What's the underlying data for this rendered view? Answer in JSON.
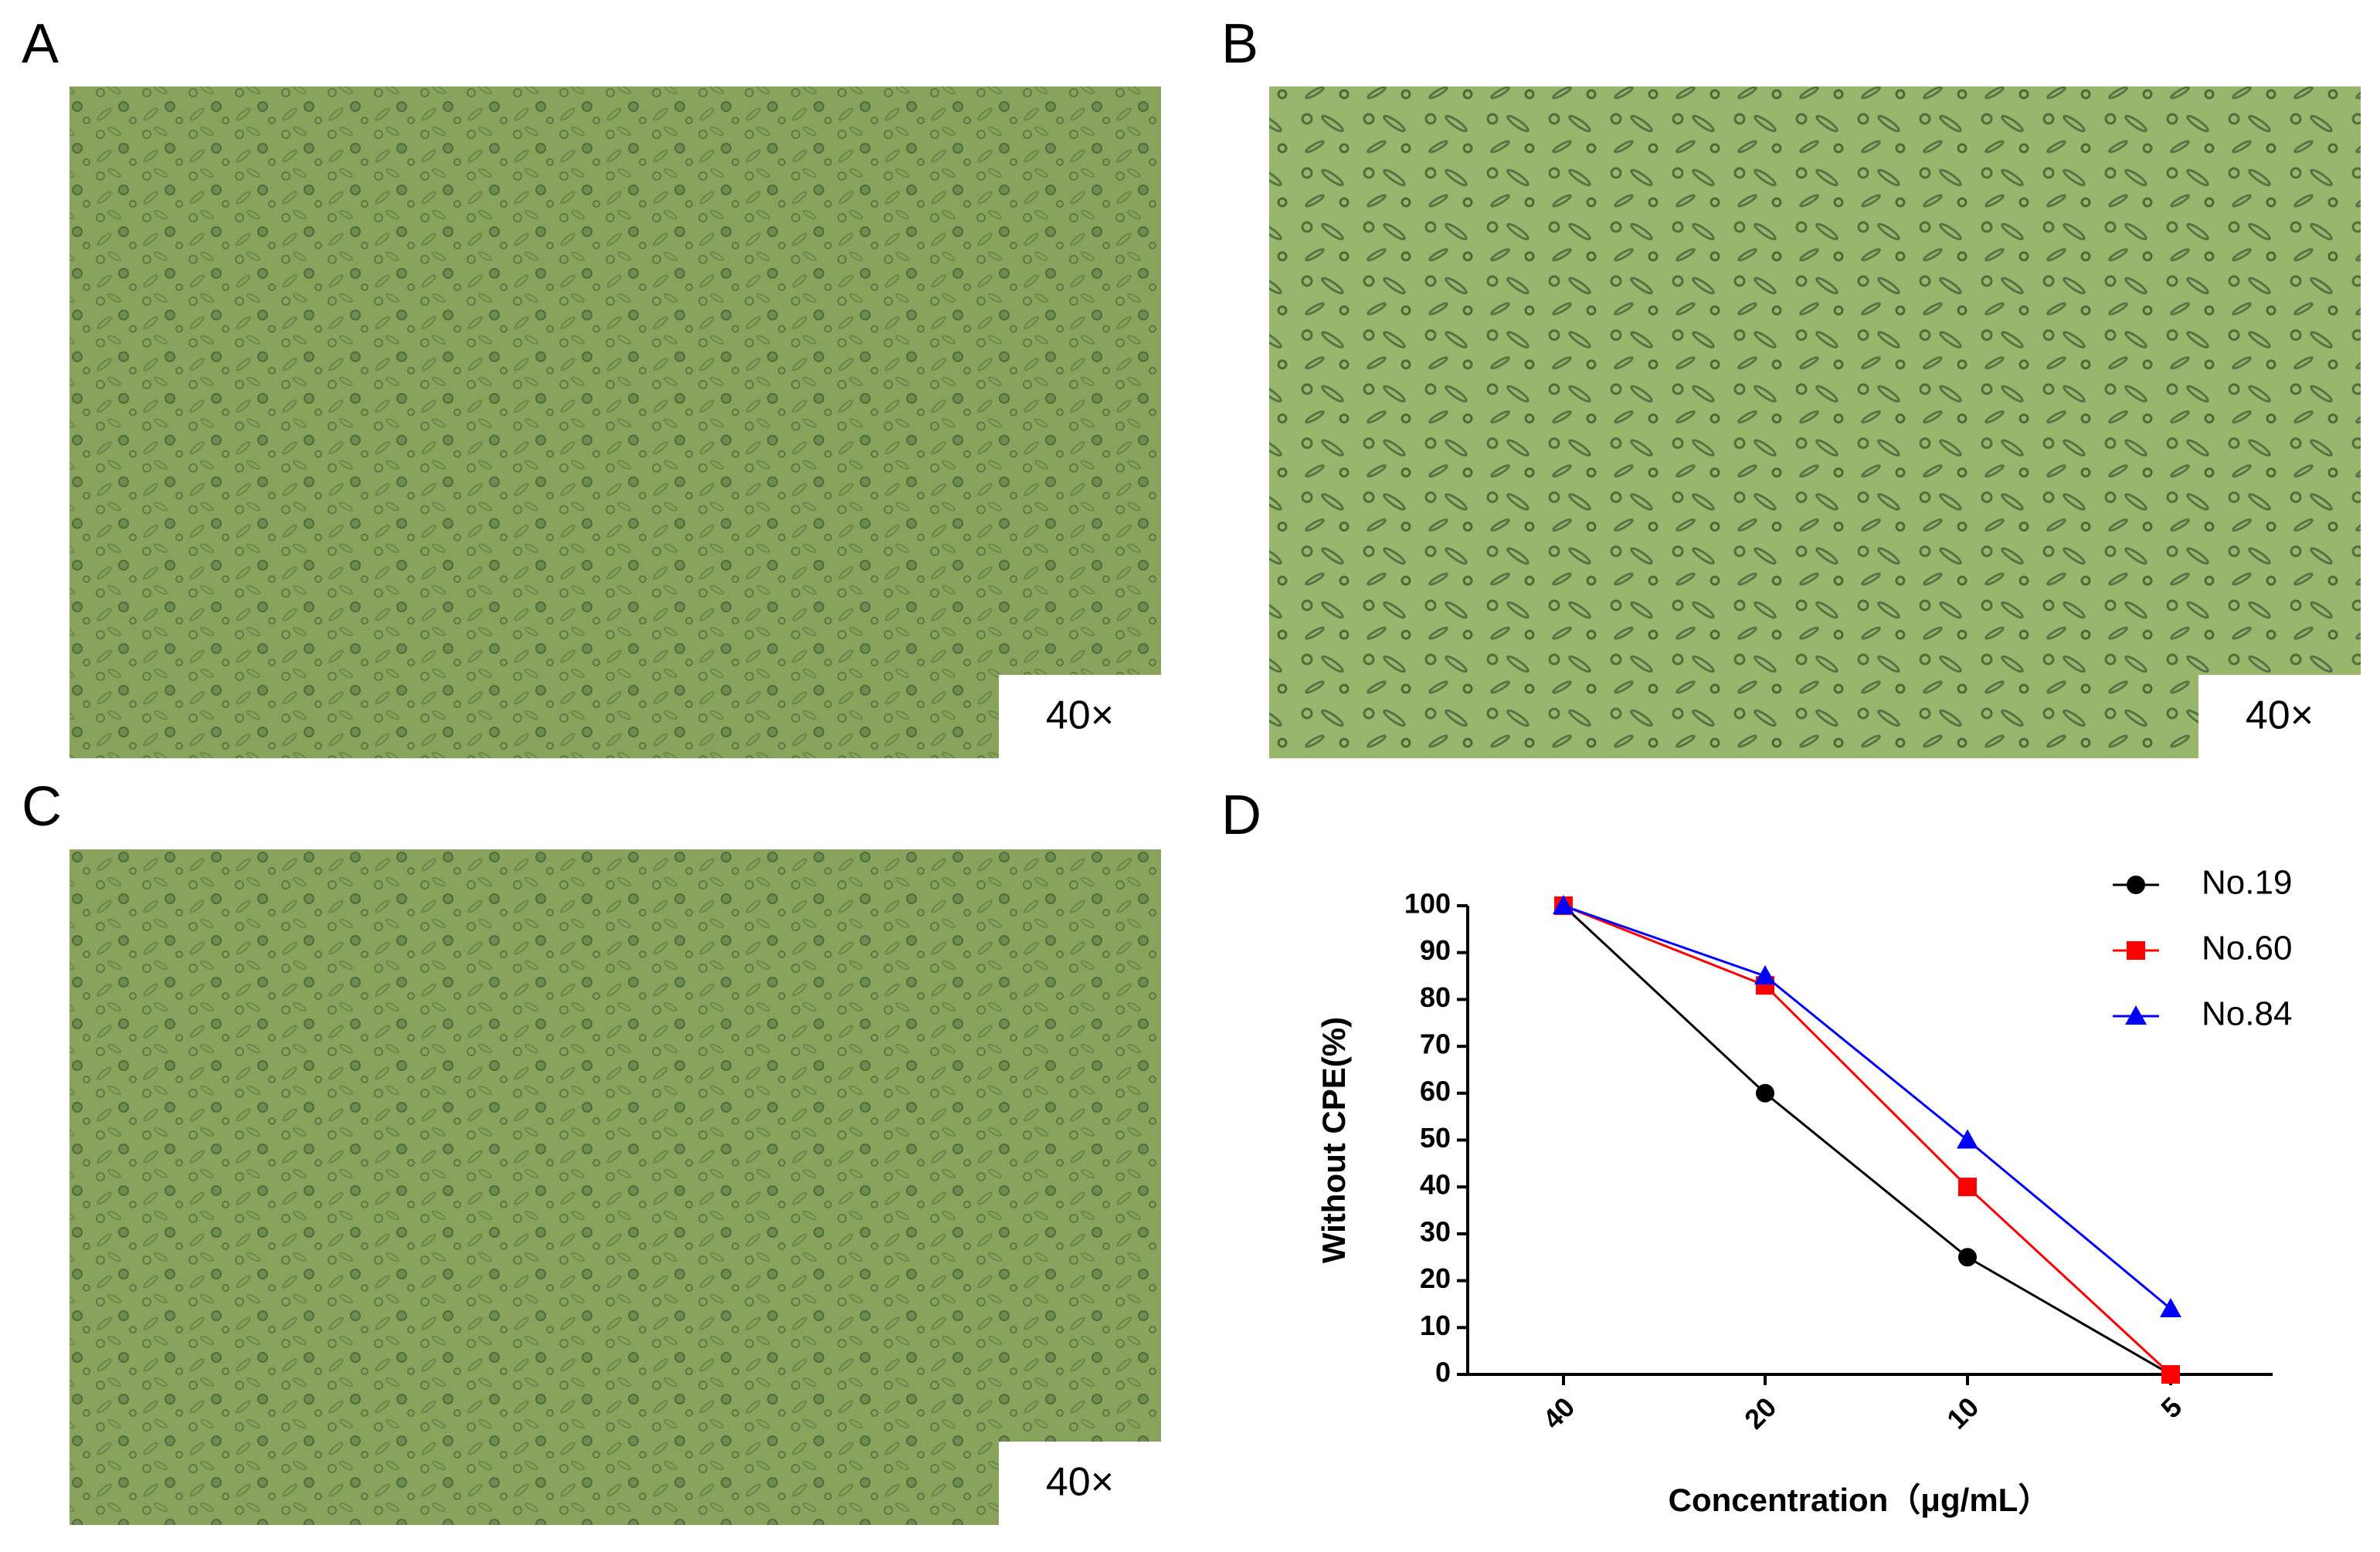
{
  "panels": [
    {
      "label": "A",
      "scale": "40×"
    },
    {
      "label": "B",
      "scale": "40×"
    },
    {
      "label": "C",
      "scale": "40×"
    }
  ],
  "chart_data": {
    "type": "line",
    "panel_label": "D",
    "xlabel": "Concentration（μg/mL）",
    "ylabel": "Without CPE(%)",
    "categories": [
      "40",
      "20",
      "10",
      "5"
    ],
    "series": [
      {
        "name": "No.19",
        "color": "#000000",
        "marker": "circle",
        "values": [
          100,
          60,
          25,
          0
        ]
      },
      {
        "name": "No.60",
        "color": "#ff0000",
        "marker": "square",
        "values": [
          100,
          83,
          40,
          0
        ]
      },
      {
        "name": "No.84",
        "color": "#0000ff",
        "marker": "triangle",
        "values": [
          100,
          85,
          50,
          14
        ]
      }
    ],
    "ylim": [
      0,
      100
    ],
    "yticks": [
      0,
      10,
      20,
      30,
      40,
      50,
      60,
      70,
      80,
      90,
      100
    ],
    "legend": "upper right"
  }
}
